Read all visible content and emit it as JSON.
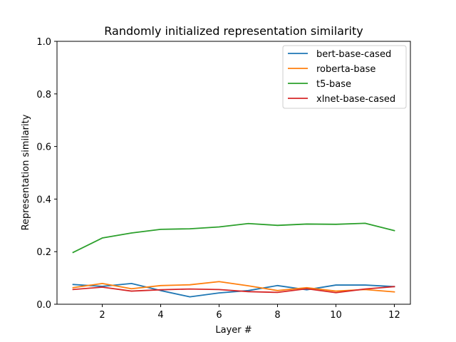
{
  "chart_data": {
    "type": "line",
    "title": "Randomly initialized representation similarity",
    "xlabel": "Layer #",
    "ylabel": "Representation similarity",
    "xlim": [
      0.45,
      12.55
    ],
    "ylim": [
      0,
      1
    ],
    "xticks": [
      2,
      4,
      6,
      8,
      10,
      12
    ],
    "yticks": [
      0.0,
      0.2,
      0.4,
      0.6,
      0.8,
      1.0
    ],
    "ytick_labels": [
      "0.0",
      "0.2",
      "0.4",
      "0.6",
      "0.8",
      "1.0"
    ],
    "xtick_labels": [
      "2",
      "4",
      "6",
      "8",
      "10",
      "12"
    ],
    "grid": false,
    "legend_position": "top-right",
    "x": [
      1,
      2,
      3,
      4,
      5,
      6,
      7,
      8,
      9,
      10,
      11,
      12
    ],
    "series": [
      {
        "name": "bert-base-cased",
        "color": "#1f77b4",
        "values": [
          0.075,
          0.068,
          0.079,
          0.052,
          0.028,
          0.043,
          0.052,
          0.071,
          0.055,
          0.073,
          0.073,
          0.067
        ]
      },
      {
        "name": "roberta-base",
        "color": "#ff7f0e",
        "values": [
          0.063,
          0.079,
          0.059,
          0.071,
          0.074,
          0.086,
          0.07,
          0.052,
          0.063,
          0.05,
          0.056,
          0.047
        ]
      },
      {
        "name": "t5-base",
        "color": "#2ca02c",
        "values": [
          0.197,
          0.252,
          0.271,
          0.285,
          0.287,
          0.294,
          0.307,
          0.3,
          0.305,
          0.304,
          0.308,
          0.28
        ]
      },
      {
        "name": "xlnet-base-cased",
        "color": "#d62728",
        "values": [
          0.056,
          0.065,
          0.05,
          0.055,
          0.058,
          0.056,
          0.048,
          0.045,
          0.059,
          0.044,
          0.058,
          0.067
        ]
      }
    ]
  }
}
